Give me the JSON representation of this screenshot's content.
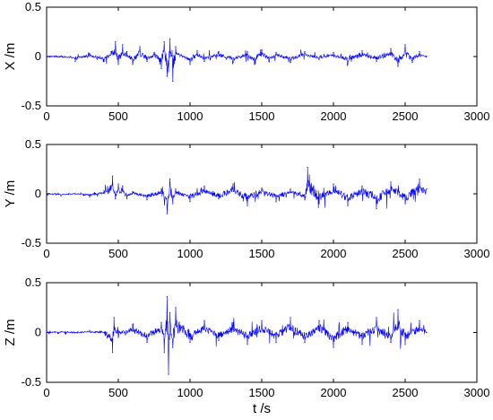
{
  "chart_data": [
    {
      "type": "line",
      "ylabel": "X /m",
      "xlabel": "",
      "xlim": [
        0,
        3000
      ],
      "ylim": [
        -0.5,
        0.5
      ],
      "x_ticks": [
        "0",
        "500",
        "1000",
        "1500",
        "2000",
        "2500",
        "3000"
      ],
      "y_ticks": [
        "-0.5",
        "0",
        "0.5"
      ],
      "grid": false,
      "series": [
        {
          "color": "#0000ff",
          "x": [
            0,
            100,
            200,
            300,
            400,
            450,
            480,
            500,
            530,
            560,
            600,
            650,
            700,
            750,
            800,
            820,
            840,
            860,
            880,
            900,
            950,
            1000,
            1050,
            1100,
            1200,
            1300,
            1400,
            1450,
            1500,
            1550,
            1600,
            1700,
            1800,
            1900,
            2000,
            2100,
            2200,
            2300,
            2400,
            2450,
            2500,
            2550,
            2600,
            2650
          ],
          "y": [
            0.0,
            0.0,
            -0.05,
            0.03,
            -0.05,
            0.05,
            0.15,
            -0.08,
            0.12,
            0.05,
            -0.08,
            0.1,
            -0.05,
            0.04,
            -0.12,
            0.15,
            -0.2,
            0.18,
            -0.25,
            0.1,
            0.0,
            -0.08,
            0.06,
            -0.05,
            0.05,
            -0.06,
            0.05,
            -0.08,
            0.07,
            -0.05,
            0.04,
            -0.06,
            0.05,
            -0.03,
            0.04,
            -0.08,
            0.06,
            -0.05,
            0.08,
            -0.1,
            0.12,
            -0.06,
            0.05,
            0.0
          ]
        }
      ]
    },
    {
      "type": "line",
      "ylabel": "Y /m",
      "xlabel": "",
      "xlim": [
        0,
        3000
      ],
      "ylim": [
        -0.5,
        0.5
      ],
      "x_ticks": [
        "0",
        "500",
        "1000",
        "1500",
        "2000",
        "2500",
        "3000"
      ],
      "y_ticks": [
        "-0.5",
        "0",
        "0.5"
      ],
      "grid": false,
      "series": [
        {
          "color": "#0000ff",
          "x": [
            0,
            100,
            200,
            300,
            400,
            460,
            480,
            500,
            530,
            560,
            600,
            700,
            800,
            840,
            860,
            880,
            900,
            1000,
            1100,
            1200,
            1300,
            1400,
            1500,
            1600,
            1700,
            1800,
            1820,
            1900,
            2000,
            2100,
            2200,
            2300,
            2400,
            2500,
            2600,
            2650
          ],
          "y": [
            0.0,
            -0.02,
            0.0,
            -0.03,
            0.03,
            0.18,
            -0.05,
            0.1,
            0.08,
            -0.05,
            0.02,
            -0.06,
            0.05,
            -0.2,
            0.15,
            -0.1,
            0.05,
            -0.08,
            0.08,
            -0.05,
            0.1,
            -0.12,
            0.06,
            -0.08,
            0.05,
            -0.06,
            0.27,
            -0.1,
            0.1,
            -0.12,
            0.08,
            -0.15,
            0.12,
            -0.1,
            0.15,
            0.05
          ]
        }
      ]
    },
    {
      "type": "line",
      "ylabel": "Z /m",
      "xlabel": "t /s",
      "xlim": [
        0,
        3000
      ],
      "ylim": [
        -0.5,
        0.5
      ],
      "x_ticks": [
        "0",
        "500",
        "1000",
        "1500",
        "2000",
        "2500",
        "3000"
      ],
      "y_ticks": [
        "-0.5",
        "0",
        "0.5"
      ],
      "grid": false,
      "series": [
        {
          "color": "#0000ff",
          "x": [
            0,
            100,
            200,
            300,
            400,
            460,
            470,
            500,
            600,
            700,
            800,
            820,
            840,
            850,
            860,
            880,
            900,
            1000,
            1100,
            1200,
            1300,
            1400,
            1500,
            1600,
            1700,
            1800,
            1900,
            2000,
            2100,
            2200,
            2300,
            2400,
            2450,
            2500,
            2600,
            2650
          ],
          "y": [
            0.0,
            0.01,
            0.0,
            0.02,
            0.0,
            -0.2,
            0.15,
            -0.05,
            0.08,
            -0.1,
            0.1,
            -0.2,
            0.36,
            -0.42,
            0.2,
            -0.15,
            0.25,
            -0.1,
            0.12,
            -0.08,
            0.1,
            -0.12,
            0.12,
            -0.1,
            0.15,
            -0.1,
            0.12,
            -0.15,
            0.1,
            -0.12,
            0.15,
            -0.1,
            0.23,
            -0.12,
            0.12,
            0.0
          ]
        }
      ]
    }
  ]
}
